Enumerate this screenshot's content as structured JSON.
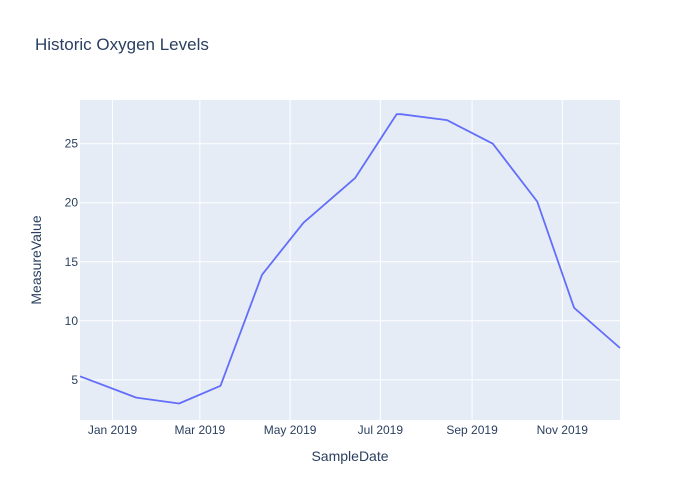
{
  "chart_data": {
    "type": "line",
    "title": "Historic Oxygen Levels",
    "xlabel": "SampleDate",
    "ylabel": "MeasureValue",
    "x": [
      "2018-12-10",
      "2019-01-17",
      "2019-02-15",
      "2019-03-15",
      "2019-04-12",
      "2019-05-10",
      "2019-06-14",
      "2019-07-12",
      "2019-07-15",
      "2019-08-15",
      "2019-09-15",
      "2019-10-15",
      "2019-11-09",
      "2019-12-10"
    ],
    "series": [
      {
        "values": [
          5.3,
          3.5,
          3.0,
          4.5,
          13.9,
          18.3,
          22.1,
          27.5,
          27.5,
          27.0,
          25.0,
          20.1,
          11.1,
          7.7
        ],
        "color": "#636efa"
      }
    ],
    "xlim": [
      "2018-12-10",
      "2019-12-10"
    ],
    "ylim": [
      1.6,
      28.7
    ],
    "x_ticks": [
      {
        "value": "2019-01-01",
        "label": "Jan 2019"
      },
      {
        "value": "2019-03-01",
        "label": "Mar 2019"
      },
      {
        "value": "2019-05-01",
        "label": "May 2019"
      },
      {
        "value": "2019-07-01",
        "label": "Jul 2019"
      },
      {
        "value": "2019-09-01",
        "label": "Sep 2019"
      },
      {
        "value": "2019-11-01",
        "label": "Nov 2019"
      }
    ],
    "y_ticks": [
      5,
      10,
      15,
      20,
      25
    ],
    "grid": true,
    "plot_background": "#e5ecf6"
  }
}
